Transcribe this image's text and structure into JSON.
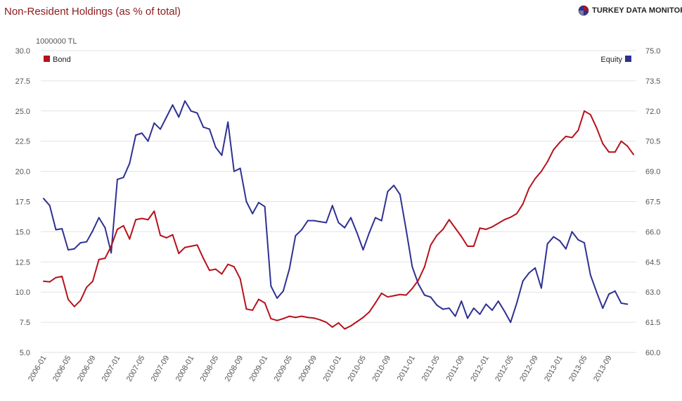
{
  "header": {
    "title": "Non-Resident Holdings (as % of total)",
    "brand": "TURKEY DATA MONITOR"
  },
  "chart_data": {
    "type": "line",
    "title": "Non-Resident Holdings (as % of total)",
    "unit_label": "1000000 TL",
    "legend": {
      "bond": "Bond",
      "equity": "Equity"
    },
    "colors": {
      "bond": "#b5121b",
      "equity": "#2e3192",
      "grid": "#e2e2e2"
    },
    "left_axis": {
      "min": 5,
      "max": 30,
      "step": 2.5,
      "ticks": [
        "5.0",
        "7.5",
        "10.0",
        "12.5",
        "15.0",
        "17.5",
        "20.0",
        "22.5",
        "25.0",
        "27.5",
        "30.0"
      ]
    },
    "right_axis": {
      "min": 60,
      "max": 75,
      "step": 1.5,
      "ticks": [
        "60.0",
        "61.5",
        "63.0",
        "64.5",
        "66.0",
        "67.5",
        "69.0",
        "70.5",
        "72.0",
        "73.5",
        "75.0"
      ]
    },
    "x_labels": [
      "2006-01",
      "2006-05",
      "2006-09",
      "2007-01",
      "2007-05",
      "2007-09",
      "2008-01",
      "2008-05",
      "2008-09",
      "2009-01",
      "2009-05",
      "2009-09",
      "2010-01",
      "2010-05",
      "2010-09",
      "2011-01",
      "2011-05",
      "2011-09",
      "2012-01",
      "2012-05",
      "2012-09",
      "2013-01",
      "2013-05",
      "2013-09"
    ],
    "x_start": "2006-01",
    "series": [
      {
        "name": "Bond",
        "axis": "left",
        "values": [
          10.9,
          10.85,
          11.2,
          11.3,
          9.4,
          8.8,
          9.3,
          10.4,
          10.9,
          12.7,
          12.8,
          13.8,
          15.2,
          15.5,
          14.4,
          16.0,
          16.1,
          16.0,
          16.7,
          14.7,
          14.5,
          14.75,
          13.2,
          13.7,
          13.8,
          13.9,
          12.8,
          11.8,
          11.9,
          11.5,
          12.3,
          12.1,
          11.1,
          8.6,
          8.5,
          9.4,
          9.1,
          7.8,
          7.65,
          7.8,
          8.0,
          7.9,
          8.0,
          7.9,
          7.85,
          7.7,
          7.5,
          7.1,
          7.45,
          6.95,
          7.2,
          7.55,
          7.9,
          8.35,
          9.1,
          9.9,
          9.6,
          9.7,
          9.8,
          9.75,
          10.3,
          11.0,
          12.1,
          13.9,
          14.7,
          15.2,
          16.0,
          15.3,
          14.6,
          13.8,
          13.8,
          15.3,
          15.2,
          15.4,
          15.7,
          16.0,
          16.2,
          16.5,
          17.3,
          18.6,
          19.4,
          20.0,
          20.8,
          21.8,
          22.4,
          22.9,
          22.8,
          23.4,
          25.0,
          24.7,
          23.6,
          22.3,
          21.6,
          21.6,
          22.5,
          22.1,
          21.4
        ]
      },
      {
        "name": "Equity",
        "axis": "right",
        "values": [
          67.65,
          67.3,
          66.1,
          66.15,
          65.1,
          65.15,
          65.45,
          65.5,
          66.05,
          66.7,
          66.2,
          64.95,
          68.6,
          68.7,
          69.4,
          70.8,
          70.9,
          70.5,
          71.4,
          71.1,
          71.7,
          72.3,
          71.7,
          72.5,
          72.0,
          71.9,
          71.2,
          71.1,
          70.2,
          69.8,
          71.45,
          69.0,
          69.15,
          67.5,
          66.9,
          67.45,
          67.25,
          63.3,
          62.7,
          63.05,
          64.15,
          65.8,
          66.1,
          66.55,
          66.55,
          66.5,
          66.45,
          67.3,
          66.45,
          66.2,
          66.7,
          65.95,
          65.1,
          65.95,
          66.7,
          66.55,
          68.0,
          68.3,
          67.85,
          66.1,
          64.25,
          63.4,
          62.85,
          62.75,
          62.35,
          62.15,
          62.2,
          61.8,
          62.55,
          61.7,
          62.2,
          61.9,
          62.4,
          62.1,
          62.55,
          62.05,
          61.5,
          62.45,
          63.55,
          63.95,
          64.2,
          63.2,
          65.4,
          65.75,
          65.55,
          65.15,
          66.0,
          65.6,
          65.45,
          63.85,
          63.0,
          62.2,
          62.9,
          63.05,
          62.45,
          62.4
        ]
      }
    ]
  }
}
